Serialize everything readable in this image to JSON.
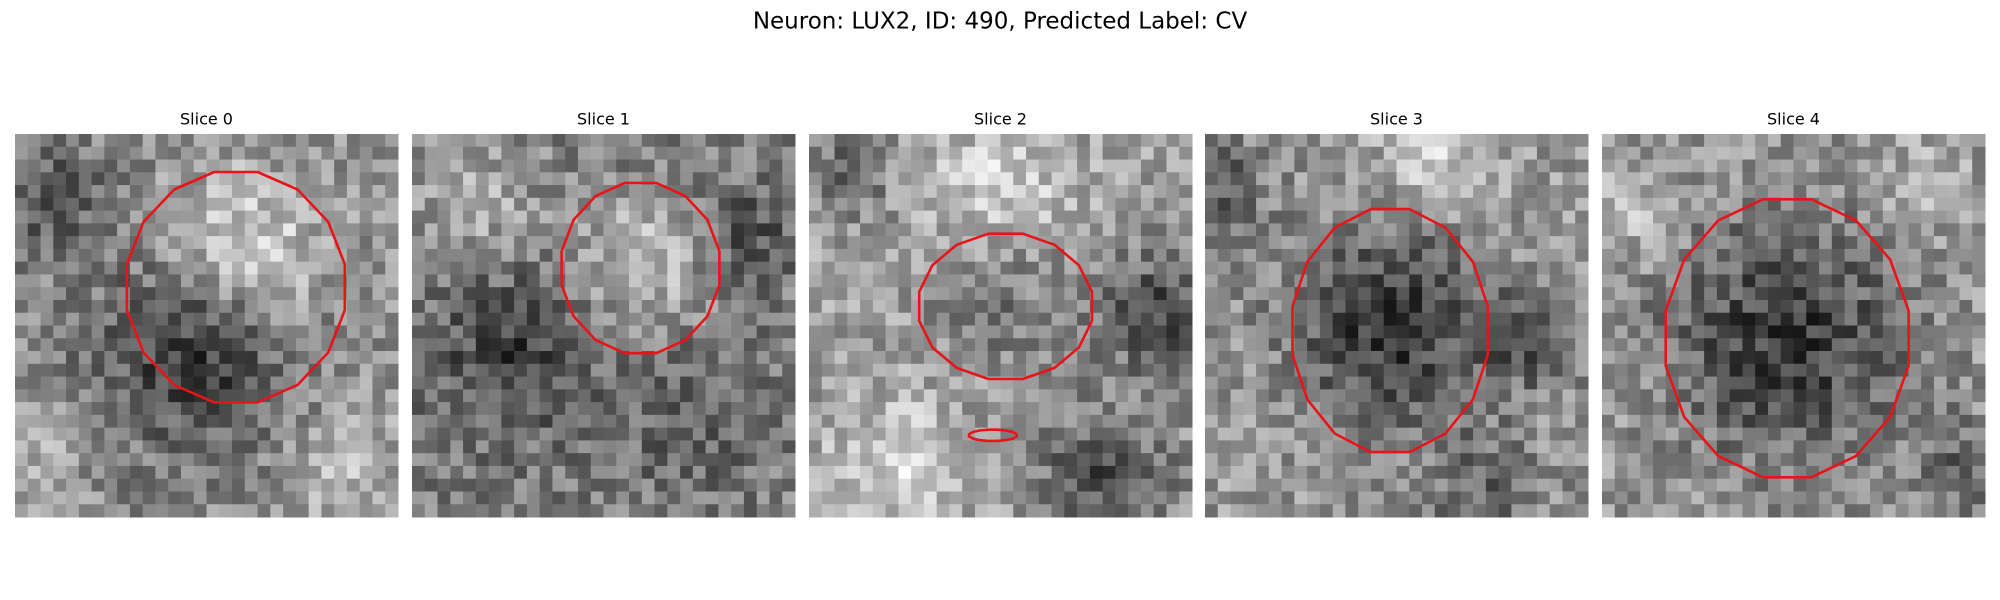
{
  "title": "Neuron: LUX2, ID: 490, Predicted Label: CV",
  "panels": [
    {
      "title": "Slice 0"
    },
    {
      "title": "Slice 1"
    },
    {
      "title": "Slice 2"
    },
    {
      "title": "Slice 3"
    },
    {
      "title": "Slice 4"
    }
  ]
}
